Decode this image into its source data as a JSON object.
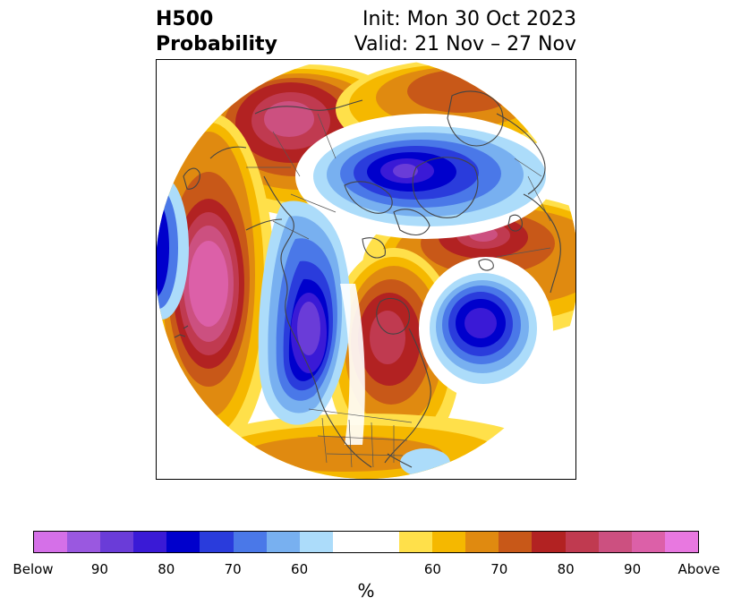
{
  "title": {
    "left_line1": "H500",
    "left_line2": "Probability",
    "right_line1": "Init: Mon 30 Oct 2023",
    "right_line2": "Valid: 21 Nov – 27 Nov"
  },
  "colorbar": {
    "unit": "%",
    "below_colors": [
      "#d570e8",
      "#9a58e0",
      "#6a3cd8",
      "#3a1ad6",
      "#0000cc",
      "#2a3cdc",
      "#4a78e8",
      "#78b0f0",
      "#acdcfa"
    ],
    "neutral_color": "#ffffff",
    "above_colors": [
      "#ffe04a",
      "#f5b800",
      "#e08a10",
      "#c85818",
      "#b22222",
      "#c03a50",
      "#cc5080",
      "#dc60a8",
      "#e878e0"
    ],
    "tick_labels": [
      "Below",
      "90",
      "80",
      "70",
      "60",
      "60",
      "70",
      "80",
      "90",
      "Above"
    ]
  },
  "colors": {
    "coastline": "#444444",
    "frame": "#000000"
  }
}
